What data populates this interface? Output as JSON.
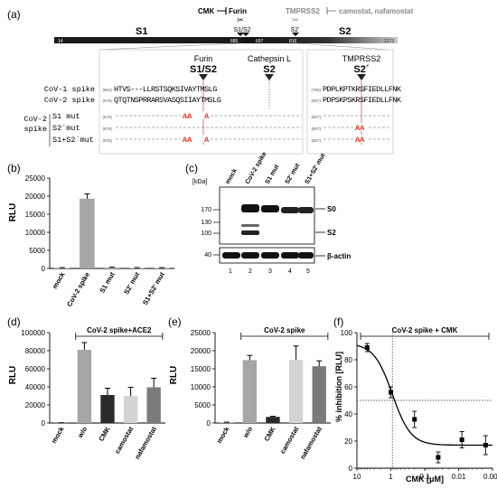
{
  "panel_a": {
    "label": "(a)",
    "cmk": "CMK",
    "furin_top": "Furin",
    "tmprss2_top": "TMPRSS2",
    "camostat": "camostat, nafamostat",
    "s1s2_site": "S1/S2",
    "s2prime_site": "S2´",
    "s1": "S1",
    "s2": "S2",
    "pos": [
      "14",
      "685",
      "697",
      "816",
      "1273"
    ],
    "furin": "Furin",
    "cathepsin": "Cathepsin L",
    "tmprss2": "TMPRSS2",
    "s1s2_big": "S1/S2",
    "s2_big": "S2",
    "s2p_big": "S2´",
    "rows": {
      "cov1_label": "CoV-1 spike",
      "cov1_num1": "(661)",
      "cov1_seq1": "HTVS---LLRSTSQKSIVAYTMSLG",
      "cov1_num2": "(793)",
      "cov1_seq2": "PDPLKPTKRSFIEDLLFNK",
      "cov2_label": "CoV-2 spike",
      "cov2_num1": "(675)",
      "cov2_seq1": "QTQTNSPRRARSVASQSIIAYTMSLG",
      "cov2_num2": "(807)",
      "cov2_seq2": "PDPSKPSKRSFIEDLLFNK",
      "mut_group": "CoV-2\nspike",
      "mut_group_1": "CoV-2",
      "mut_group_2": "spike",
      "s1mut": "S1 mut",
      "s2mut": "S2´mut",
      "s1s2mut": "S1+S2´mut",
      "mut_num1": "(675)",
      "mut_num2": "(807)",
      "aa": "AA",
      "a": "A"
    }
  },
  "panel_b": {
    "label": "(b)",
    "ylabel": "RLU",
    "chart_data": {
      "type": "bar",
      "categories": [
        "mock",
        "CoV-2 spike",
        "S1 mut",
        "S2' mut",
        "S1+S2' mut"
      ],
      "values": [
        150,
        19300,
        250,
        150,
        150
      ],
      "errors": [
        80,
        1300,
        120,
        80,
        80
      ],
      "ylim": [
        0,
        25000
      ],
      "yticks": [
        "0",
        "5000",
        "10000",
        "15000",
        "20000",
        "25000"
      ]
    }
  },
  "panel_c": {
    "label": "(c)",
    "kda": "[kDa]",
    "lanes_labels": [
      "mock",
      "CoV-2 spike",
      "S1 mut",
      "S2' mut",
      "S1+S2' mut"
    ],
    "markers": [
      "170",
      "130",
      "100",
      "40"
    ],
    "s0": "S0",
    "s2": "S2",
    "actin": "β-actin",
    "lane_numbers": [
      "1",
      "2",
      "3",
      "4",
      "5"
    ]
  },
  "panel_d": {
    "label": "(d)",
    "ylabel": "RLU",
    "bracket": "CoV-2 spike+ACE2",
    "chart_data": {
      "type": "bar",
      "categories": [
        "mock",
        "w/o",
        "CMK",
        "camostat",
        "nafamostat"
      ],
      "values": [
        200,
        81000,
        31000,
        30000,
        39500
      ],
      "errors": [
        100,
        8000,
        7500,
        9500,
        10000
      ],
      "ylim": [
        0,
        100000
      ],
      "yticks": [
        "0",
        "20000",
        "40000",
        "60000",
        "80000",
        "100000"
      ]
    }
  },
  "panel_e": {
    "label": "(e)",
    "ylabel": "RLU",
    "bracket": "CoV-2 spike",
    "chart_data": {
      "type": "bar",
      "categories": [
        "mock",
        "w/o",
        "CMK",
        "camostat",
        "nafamostat"
      ],
      "values": [
        150,
        17400,
        1700,
        17500,
        15700
      ],
      "errors": [
        80,
        1300,
        150,
        3800,
        1500
      ],
      "ylim": [
        0,
        25000
      ],
      "yticks": [
        "0",
        "5000",
        "10000",
        "15000",
        "20000",
        "25000"
      ]
    }
  },
  "panel_f": {
    "label": "(f)",
    "ylabel": "% inhibition [RLU]",
    "xlabel": "CMK [μM]",
    "bracket": "CoV-2 spike + CMK",
    "chart_data": {
      "type": "scatter",
      "x": [
        5,
        1,
        0.2,
        0.04,
        0.008,
        0.0016
      ],
      "y": [
        89,
        56,
        36,
        8,
        21,
        17
      ],
      "errors": [
        3,
        4,
        6,
        4,
        6,
        7
      ],
      "xlim": [
        10,
        0.001
      ],
      "ylim": [
        0,
        100
      ],
      "xticks": [
        "10",
        "1",
        "0.1",
        "0.01",
        "0.001"
      ],
      "yticks": [
        "0",
        "20",
        "40",
        "60",
        "80",
        "100"
      ]
    }
  }
}
